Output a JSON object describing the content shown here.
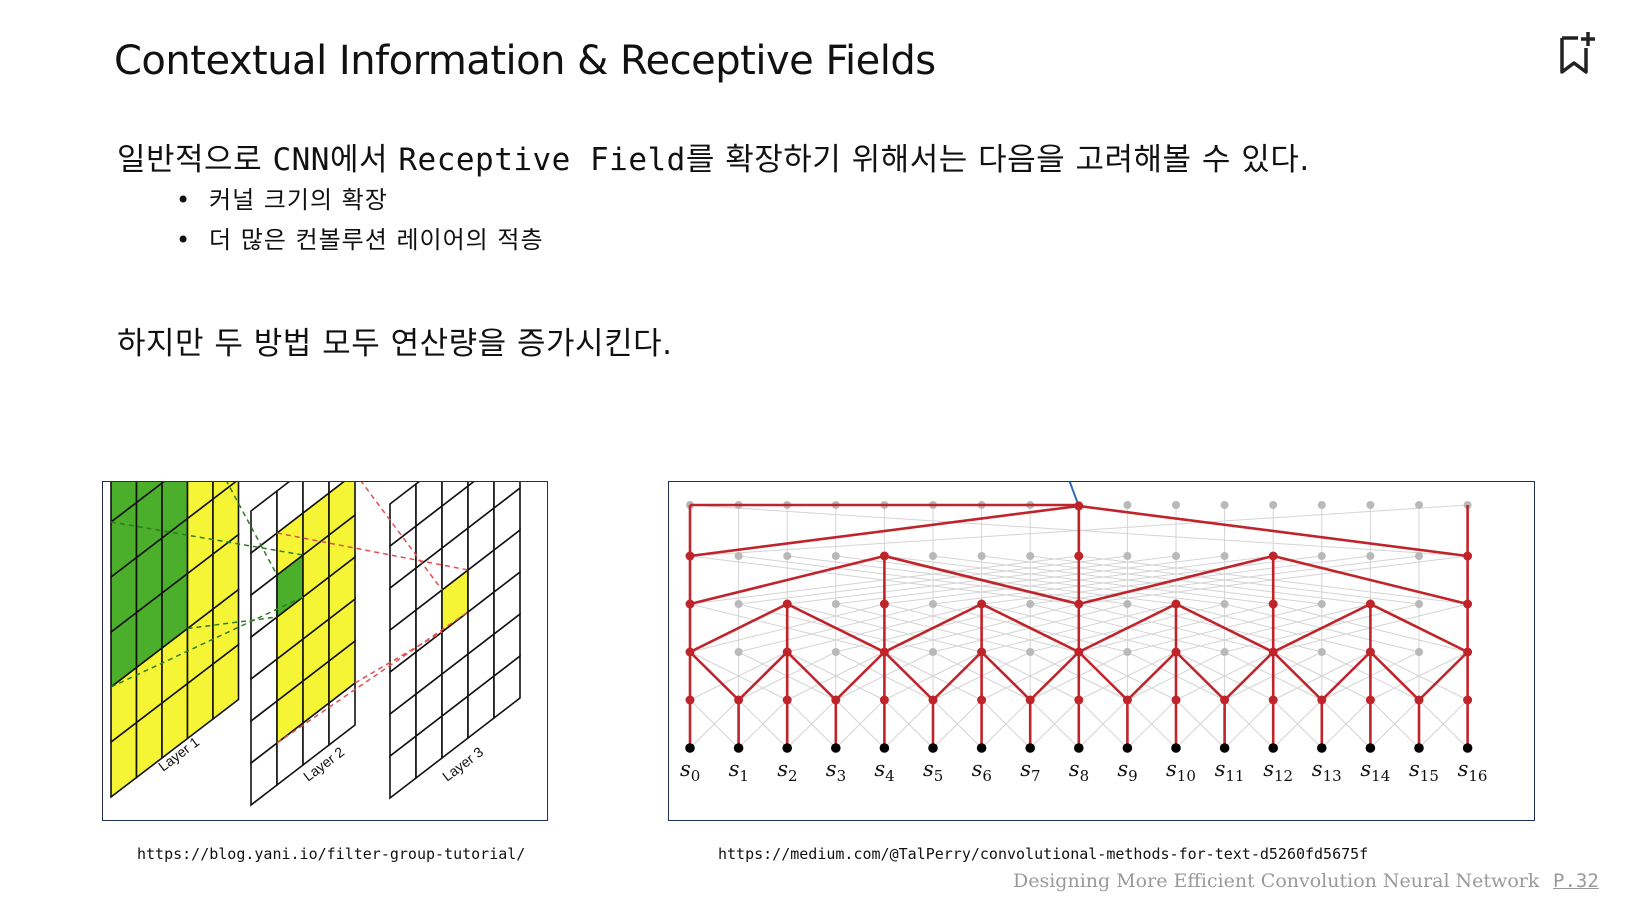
{
  "slide": {
    "title": "Contextual Information & Receptive Fields",
    "line1_pre": "일반적으로 ",
    "line1_cnn": "CNN",
    "line1_mid": "에서 ",
    "line1_rf": "Receptive Field",
    "line1_post": "를 확장하기 위해서는 다음을 고려해볼 수 있다.",
    "bullets": [
      "커널 크기의 확장",
      "더 많은 컨볼루션 레이어의 적층"
    ],
    "line2": "하지만 두 방법 모두 연산량을 증가시킨다.",
    "bookmark_icon": "bookmark-add-icon"
  },
  "figure1": {
    "layers": [
      "Layer 1",
      "Layer 2",
      "Layer 3"
    ],
    "colors": {
      "green": "#4caf2b",
      "yellow": "#f5f536",
      "green_dash": "#2e7d1e",
      "red_dash": "#e05050"
    },
    "source": "https://blog.yani.io/filter-group-tutorial/"
  },
  "figure2": {
    "labels": [
      "s0",
      "s1",
      "s2",
      "s3",
      "s4",
      "s5",
      "s6",
      "s7",
      "s8",
      "s9",
      "s10",
      "s11",
      "s12",
      "s13",
      "s14",
      "s15",
      "s16"
    ],
    "colors": {
      "red": "#c0242b",
      "grey": "#b9b9b9",
      "black": "#000000"
    },
    "source": "https://medium.com/@TalPerry/convolutional-methods-for-text-d5260fd5675f"
  },
  "footer": {
    "text": "Designing More Efficient Convolution Neural Network",
    "page": "P.32"
  }
}
